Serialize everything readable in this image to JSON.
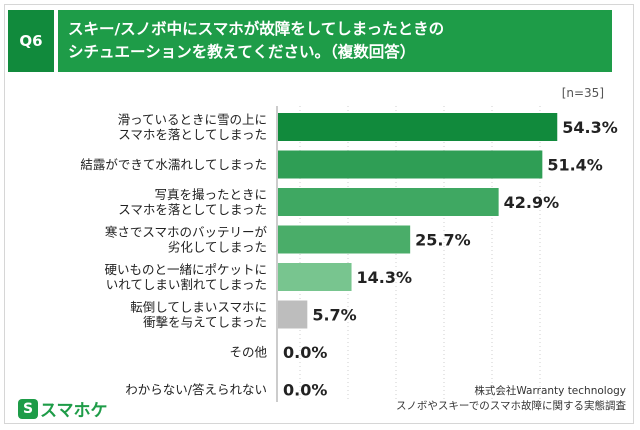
{
  "header": {
    "tag": "Q6",
    "title": "スキー/スノボ中にスマホが故障をしてしまったときの\nシチュエーションを教えてください。（複数回答）"
  },
  "sample_note": "[n=35]",
  "chart_data": {
    "type": "bar",
    "orientation": "horizontal",
    "categories": [
      "滑っているときに雪の上に\nスマホを落としてしまった",
      "結露ができて水濡れしてしまった",
      "写真を撮ったときに\nスマホを落としてしまった",
      "寒さでスマホのバッテリーが\n劣化してしまった",
      "硬いものと一緒にポケットに\nいれてしまい割れてしまった",
      "転倒してしまいスマホに\n衝撃を与えてしまった",
      "その他",
      "わからない/答えられない"
    ],
    "values": [
      54.3,
      51.4,
      42.9,
      25.7,
      14.3,
      5.7,
      0.0,
      0.0
    ],
    "value_labels": [
      "54.3%",
      "51.4%",
      "42.9%",
      "25.7%",
      "14.3%",
      "5.7%",
      "0.0%",
      "0.0%"
    ],
    "bar_colors": [
      "#118a3c",
      "#2f9e55",
      "#3fa862",
      "#4aad69",
      "#78c58f",
      "#bdbdbd",
      "#bdbdbd",
      "#bdbdbd"
    ],
    "xlim": [
      0,
      56
    ],
    "grid": "vertical-dotted",
    "legend": "none"
  },
  "brand": {
    "icon": "S",
    "name": "スマホケ"
  },
  "credit": {
    "line1": "株式会社Warranty technology",
    "line2": "スノボやスキーでのスマホ故障に関する実態調査"
  }
}
